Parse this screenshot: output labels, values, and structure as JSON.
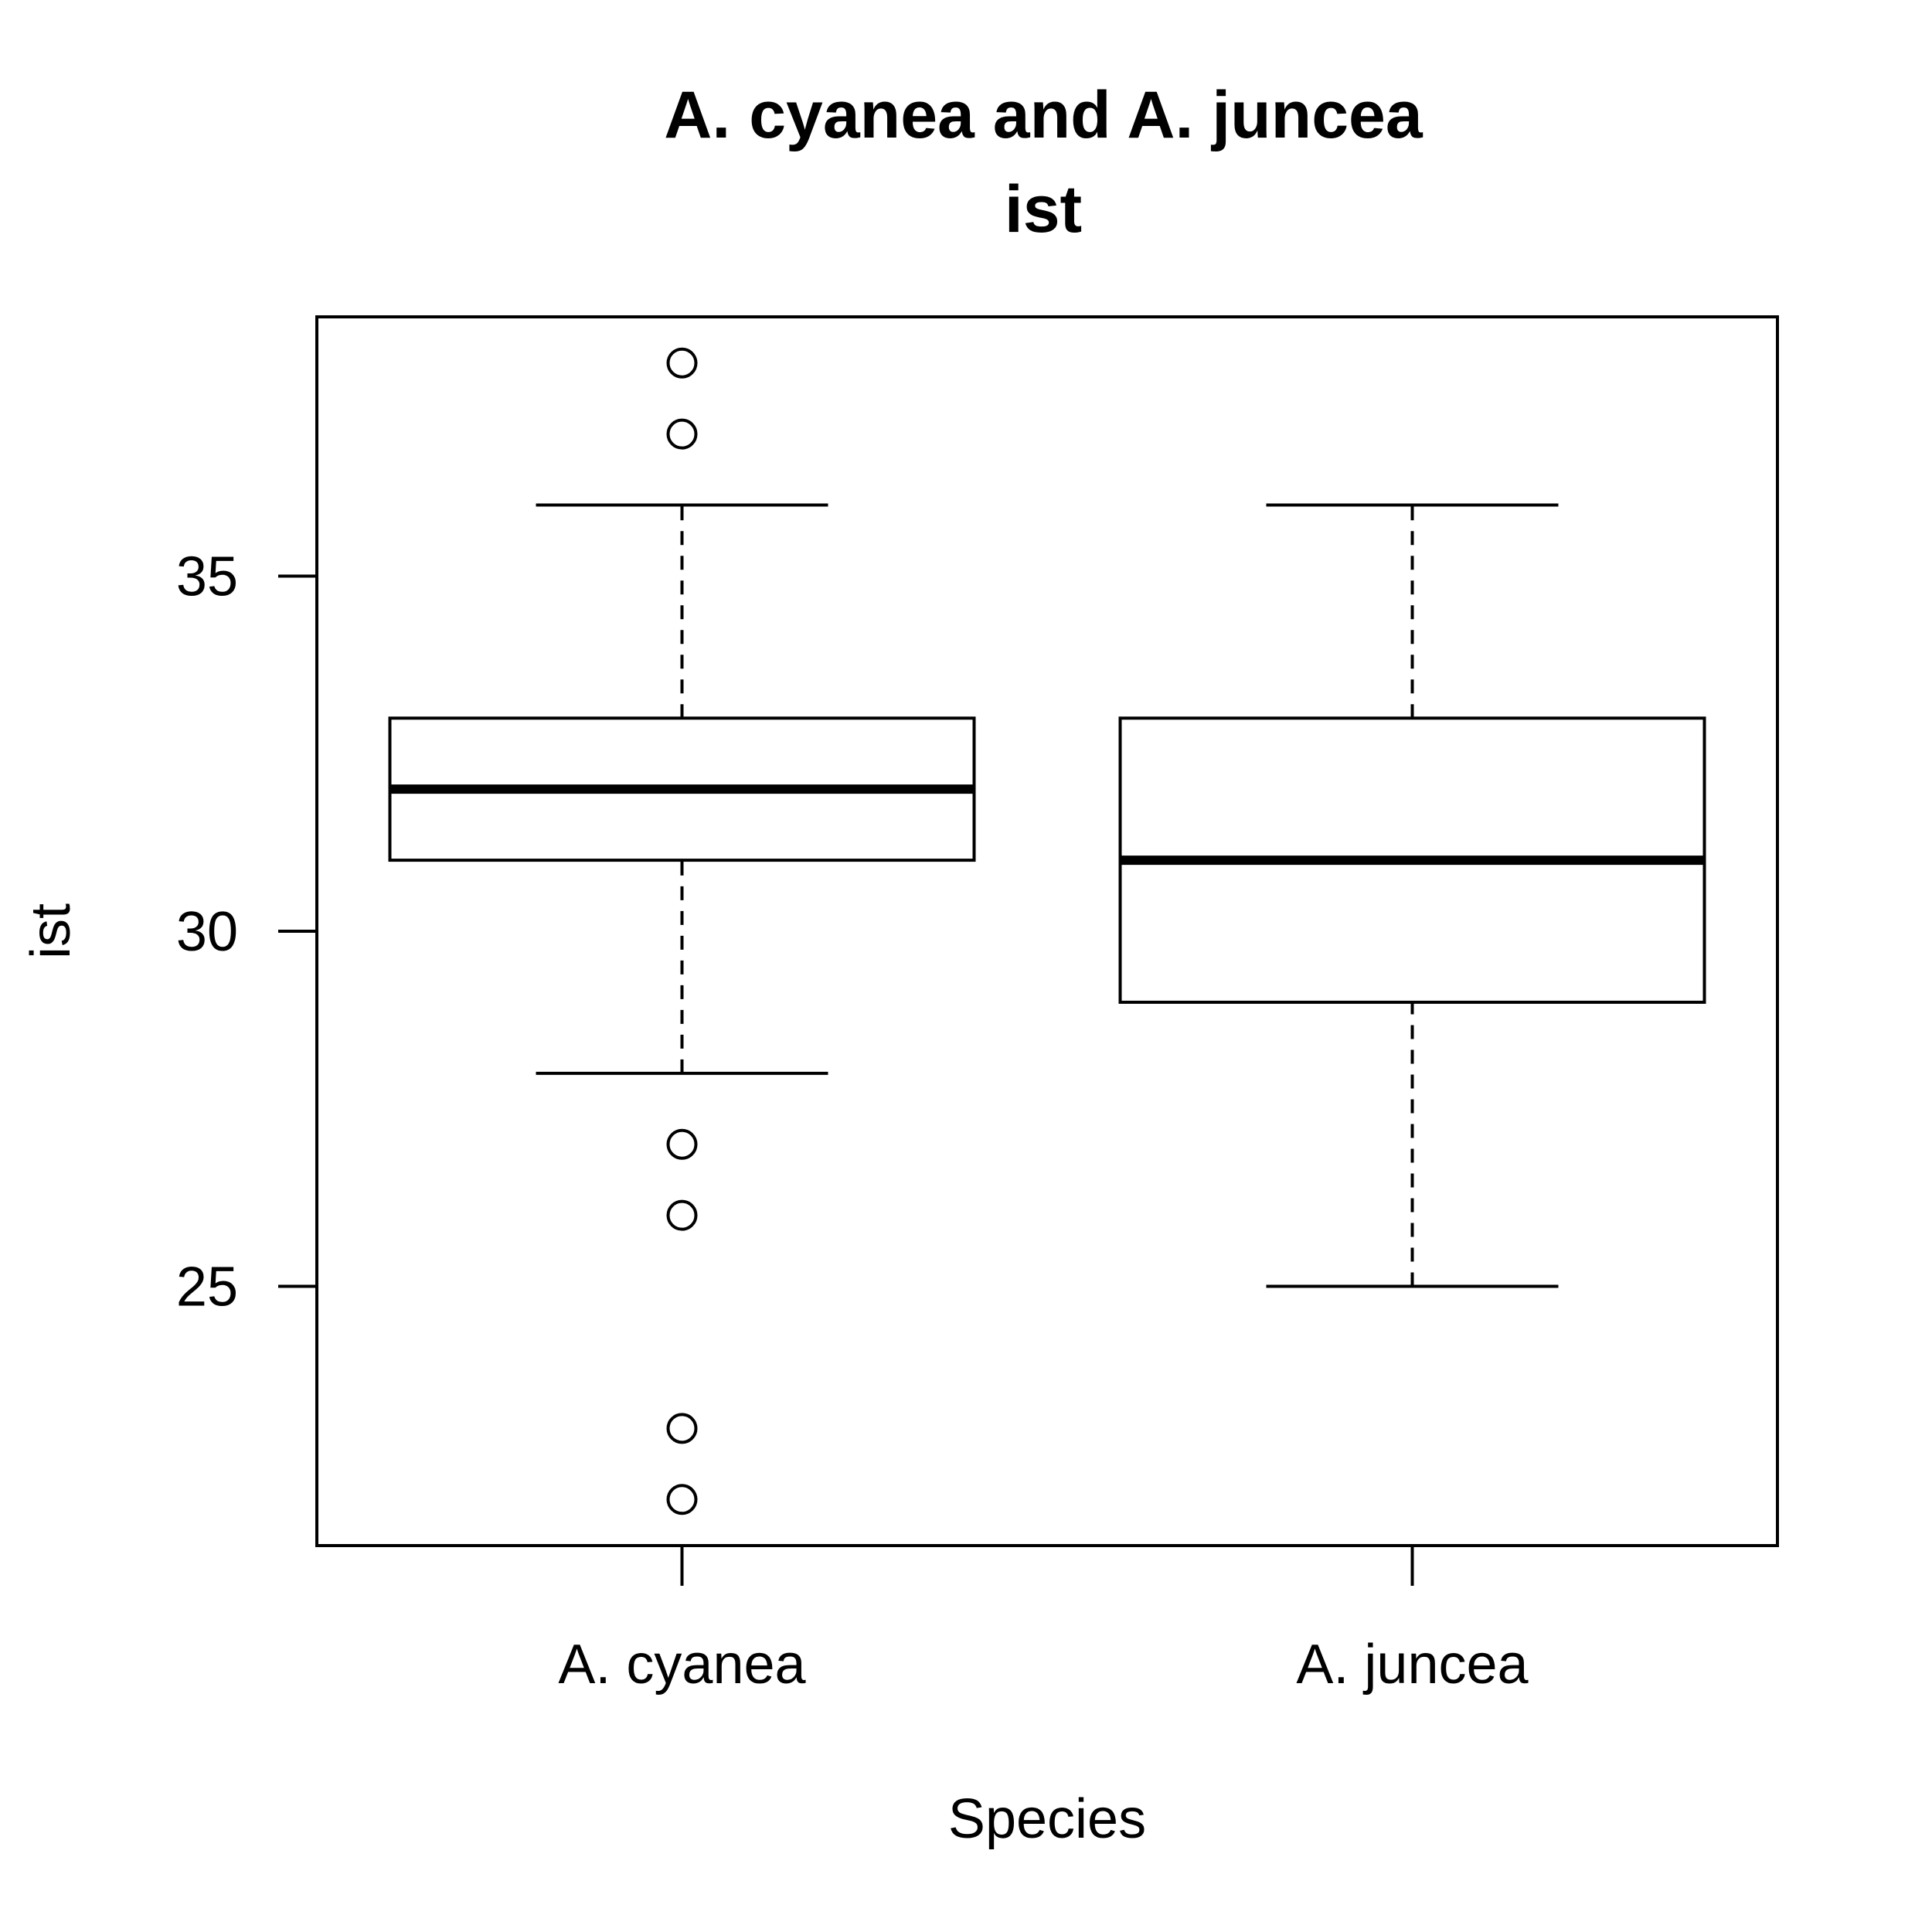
{
  "chart_data": {
    "type": "boxplot",
    "title": "A. cyanea and A. juncea",
    "subtitle": "ist",
    "xlabel": "Species",
    "ylabel": "ist",
    "categories": [
      "A. cyanea",
      "A. juncea"
    ],
    "ylim": [
      21.35,
      38.65
    ],
    "yticks": [
      25,
      30,
      35
    ],
    "ytick_labels": [
      "25",
      "30",
      "35"
    ],
    "grid": false,
    "legend": "none",
    "boxes": [
      {
        "category": "A. cyanea",
        "whisker_low": 28,
        "q1": 31,
        "median": 32,
        "q3": 33,
        "whisker_high": 36,
        "outliers": [
          38,
          37,
          27,
          26,
          23,
          22
        ]
      },
      {
        "category": "A. juncea",
        "whisker_low": 25,
        "q1": 29,
        "median": 31,
        "q3": 33,
        "whisker_high": 36,
        "outliers": []
      }
    ]
  }
}
